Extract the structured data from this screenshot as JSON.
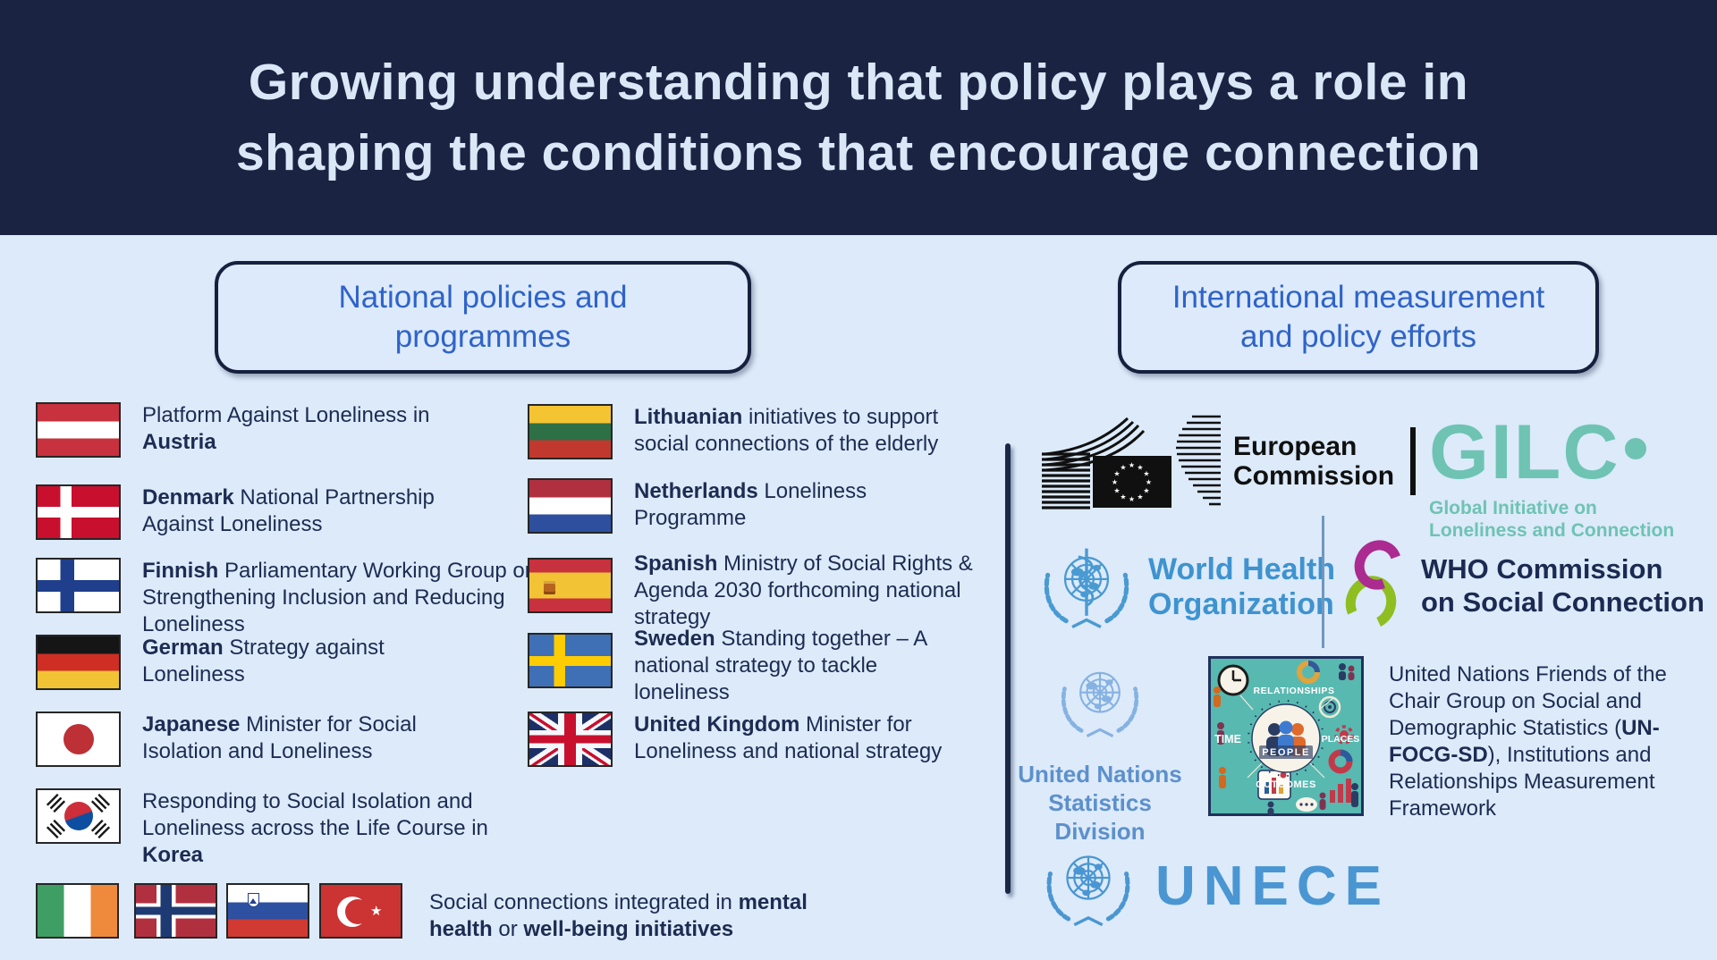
{
  "header": {
    "title": "Growing understanding that policy plays a role in shaping the conditions that encourage connection"
  },
  "boxes": {
    "national": "National policies and programmes",
    "international": "International measurement and policy efforts"
  },
  "national": {
    "col1": [
      {
        "country": "Austria",
        "segments": [
          {
            "t": "Platform Against Loneliness in ",
            "b": false
          },
          {
            "t": "Austria",
            "b": true
          }
        ]
      },
      {
        "country": "Denmark",
        "segments": [
          {
            "t": "Denmark",
            "b": true
          },
          {
            "t": " National Partnership Against Loneliness",
            "b": false
          }
        ]
      },
      {
        "country": "Finland",
        "segments": [
          {
            "t": "Finnish",
            "b": true
          },
          {
            "t": " Parliamentary Working Group on Strengthening Inclusion and Reducing Loneliness",
            "b": false
          }
        ]
      },
      {
        "country": "Germany",
        "segments": [
          {
            "t": "German",
            "b": true
          },
          {
            "t": " Strategy against Loneliness",
            "b": false
          }
        ]
      },
      {
        "country": "Japan",
        "segments": [
          {
            "t": "Japanese",
            "b": true
          },
          {
            "t": " Minister for Social Isolation and Loneliness",
            "b": false
          }
        ]
      },
      {
        "country": "South Korea",
        "segments": [
          {
            "t": "Responding to Social Isolation and Loneliness across the Life Course in ",
            "b": false
          },
          {
            "t": "Korea",
            "b": true
          }
        ]
      }
    ],
    "col2": [
      {
        "country": "Lithuania",
        "segments": [
          {
            "t": "Lithuanian",
            "b": true
          },
          {
            "t": " initiatives to support social connections of the elderly",
            "b": false
          }
        ]
      },
      {
        "country": "Netherlands",
        "segments": [
          {
            "t": "Netherlands",
            "b": true
          },
          {
            "t": " Loneliness Programme",
            "b": false
          }
        ]
      },
      {
        "country": "Spain",
        "segments": [
          {
            "t": "Spanish",
            "b": true
          },
          {
            "t": " Ministry of Social Rights & Agenda 2030 forthcoming national strategy",
            "b": false
          }
        ]
      },
      {
        "country": "Sweden",
        "segments": [
          {
            "t": "Sweden",
            "b": true
          },
          {
            "t": " Standing together – A national strategy to tackle loneliness",
            "b": false
          }
        ]
      },
      {
        "country": "United Kingdom",
        "segments": [
          {
            "t": "United Kingdom",
            "b": true
          },
          {
            "t": " Minister for Loneliness and national strategy",
            "b": false
          }
        ]
      }
    ],
    "footer_flags": [
      "Ireland",
      "Norway",
      "Slovenia",
      "Turkey"
    ],
    "footer_note": {
      "segments": [
        {
          "t": "Social connections integrated in ",
          "b": false
        },
        {
          "t": "mental health",
          "b": true
        },
        {
          "t": " or ",
          "b": false
        },
        {
          "t": "well-being initiatives",
          "b": true
        }
      ]
    }
  },
  "international": {
    "european_commission": {
      "line1": "European",
      "line2": "Commission"
    },
    "gilc": {
      "acronym": "GILC",
      "sub1": "Global Initiative on",
      "sub2": "Loneliness and Connection"
    },
    "who": {
      "line1": "World Health",
      "line2": "Organization"
    },
    "who_commission": {
      "line1": "WHO Commission",
      "line2": "on Social Connection"
    },
    "unsd": {
      "line1": "United Nations",
      "line2": "Statistics Division"
    },
    "unfocg": {
      "segments": [
        {
          "t": "United Nations Friends of the Chair Group on Social and Demographic Statistics (",
          "b": false
        },
        {
          "t": "UN-FOCG-SD",
          "b": true
        },
        {
          "t": "), Institutions and Relationships Measurement Framework",
          "b": false
        }
      ]
    },
    "unece": {
      "label": "UNECE"
    },
    "collage": {
      "top": "RELATIONSHIPS",
      "left": "TIME",
      "center": "PEOPLE",
      "right": "PLACES",
      "bottom": "OUTCOMES"
    }
  },
  "colors": {
    "header_bg": "#1A2342",
    "page_bg": "#DCEAFA",
    "body_text": "#1E2B52",
    "box_text": "#2F63C9",
    "box_border": "#16203E",
    "gilc_teal": "#6FC3B3",
    "who_blue": "#3E93CF",
    "commission_magenta": "#AB2B91",
    "commission_green": "#8FBE21",
    "unsd_blue": "#5D90CB",
    "unece_blue": "#4A96D2",
    "collage_teal": "#58B9B1"
  }
}
